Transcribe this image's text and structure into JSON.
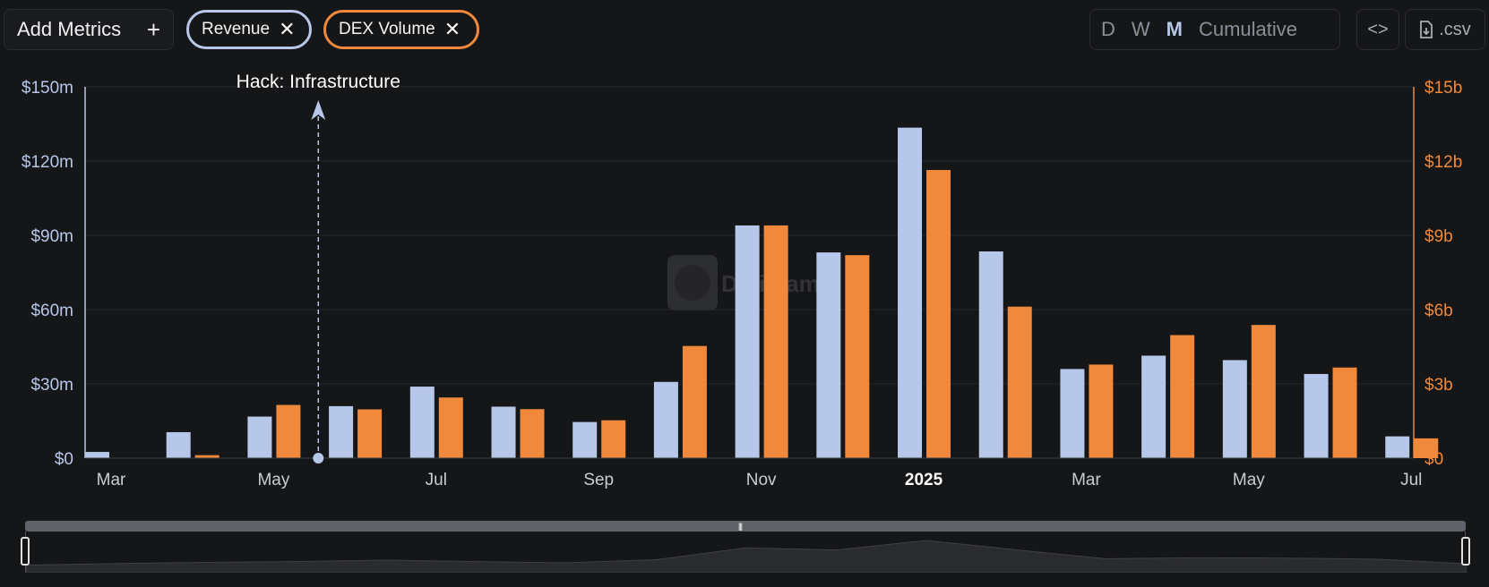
{
  "toolbar": {
    "add_metrics_label": "Add Metrics",
    "add_icon": "plus-icon",
    "chips": [
      {
        "label": "Revenue",
        "close_icon": "close-icon",
        "color": "#b7c7e9"
      },
      {
        "label": "DEX Volume",
        "close_icon": "close-icon",
        "color": "#f0893b"
      }
    ],
    "periods": [
      "D",
      "W",
      "M",
      "Cumulative"
    ],
    "active_period": "M",
    "embed_icon": "code-icon",
    "csv_label": ".csv",
    "csv_icon": "file-download-icon"
  },
  "watermark_text": "DefiLlama",
  "chart_data": {
    "type": "bar",
    "categories": [
      "Mar 2024",
      "Apr 2024",
      "May 2024",
      "Jun 2024",
      "Jul 2024",
      "Aug 2024",
      "Sep 2024",
      "Oct 2024",
      "Nov 2024",
      "Dec 2024",
      "Jan 2025",
      "Feb 2025",
      "Mar 2025",
      "Apr 2025",
      "May 2025",
      "Jun 2025",
      "Jul 2025"
    ],
    "x_tick_labels": [
      "Mar",
      "May",
      "Jul",
      "Sep",
      "Nov",
      "2025",
      "Mar",
      "May",
      "Jul"
    ],
    "series": [
      {
        "name": "Revenue",
        "axis": "left",
        "unit": "millions USD",
        "color": "#b7c7e9",
        "values": [
          2.5,
          10.5,
          16.8,
          21,
          28.9,
          20.8,
          14.6,
          30.8,
          94,
          83.1,
          133.5,
          83.5,
          36,
          41.4,
          39.6,
          34,
          8.8
        ]
      },
      {
        "name": "DEX Volume",
        "axis": "right",
        "unit": "billions USD",
        "color": "#f0893b",
        "values": [
          0,
          0.12,
          2.15,
          1.97,
          2.45,
          1.98,
          1.53,
          4.53,
          9.4,
          8.2,
          11.64,
          6.12,
          3.78,
          4.97,
          5.38,
          3.66,
          0.8
        ]
      }
    ],
    "left_axis": {
      "ticks": [
        "$0",
        "$30m",
        "$60m",
        "$90m",
        "$120m",
        "$150m"
      ],
      "range": [
        0,
        150
      ]
    },
    "right_axis": {
      "ticks": [
        "$0",
        "$3b",
        "$6b",
        "$9b",
        "$12b",
        "$15b"
      ],
      "range": [
        0,
        15
      ]
    },
    "annotations": [
      {
        "label": "Hack: Infrastructure",
        "x_position_months": 2.55
      }
    ],
    "grid": true
  }
}
